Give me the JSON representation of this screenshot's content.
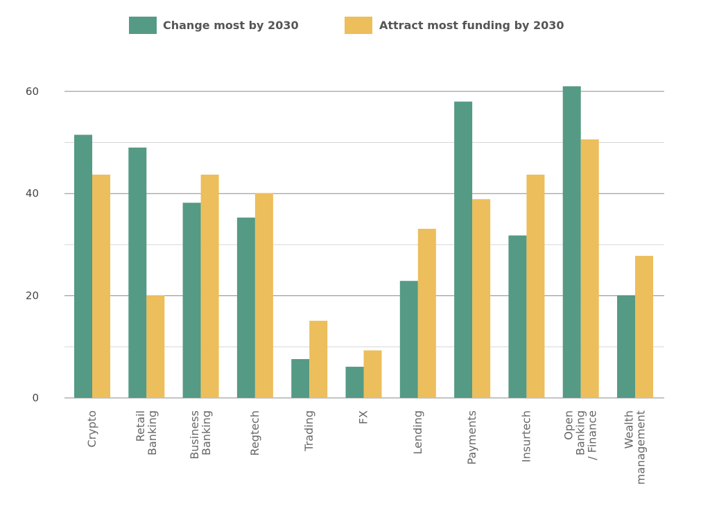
{
  "chart_data": {
    "type": "bar",
    "categories": [
      [
        "Crypto"
      ],
      [
        "Retail",
        "Banking"
      ],
      [
        "Business",
        "Banking"
      ],
      [
        "Regtech"
      ],
      [
        "Trading"
      ],
      [
        "FX"
      ],
      [
        "Lending"
      ],
      [
        "Payments"
      ],
      [
        "Insurtech"
      ],
      [
        "Open",
        "Banking",
        "/ Finance"
      ],
      [
        "Wealth",
        "management"
      ]
    ],
    "series": [
      {
        "name": "Change most by 2030",
        "color": "#559a85",
        "values": [
          51.5,
          49,
          38.2,
          35.3,
          7.6,
          6.1,
          22.9,
          58,
          31.8,
          61,
          20.1
        ]
      },
      {
        "name": "Attract most funding by 2030",
        "color": "#ecbe5c",
        "values": [
          43.7,
          20.1,
          43.7,
          40.1,
          15.1,
          9.3,
          33.1,
          38.9,
          43.7,
          50.6,
          27.8
        ]
      }
    ],
    "yticks": [
      0,
      20,
      40,
      60
    ],
    "ylim": [
      0,
      61
    ],
    "grid": true,
    "legend": "top-center",
    "title": "",
    "xlabel": "",
    "ylabel": ""
  }
}
